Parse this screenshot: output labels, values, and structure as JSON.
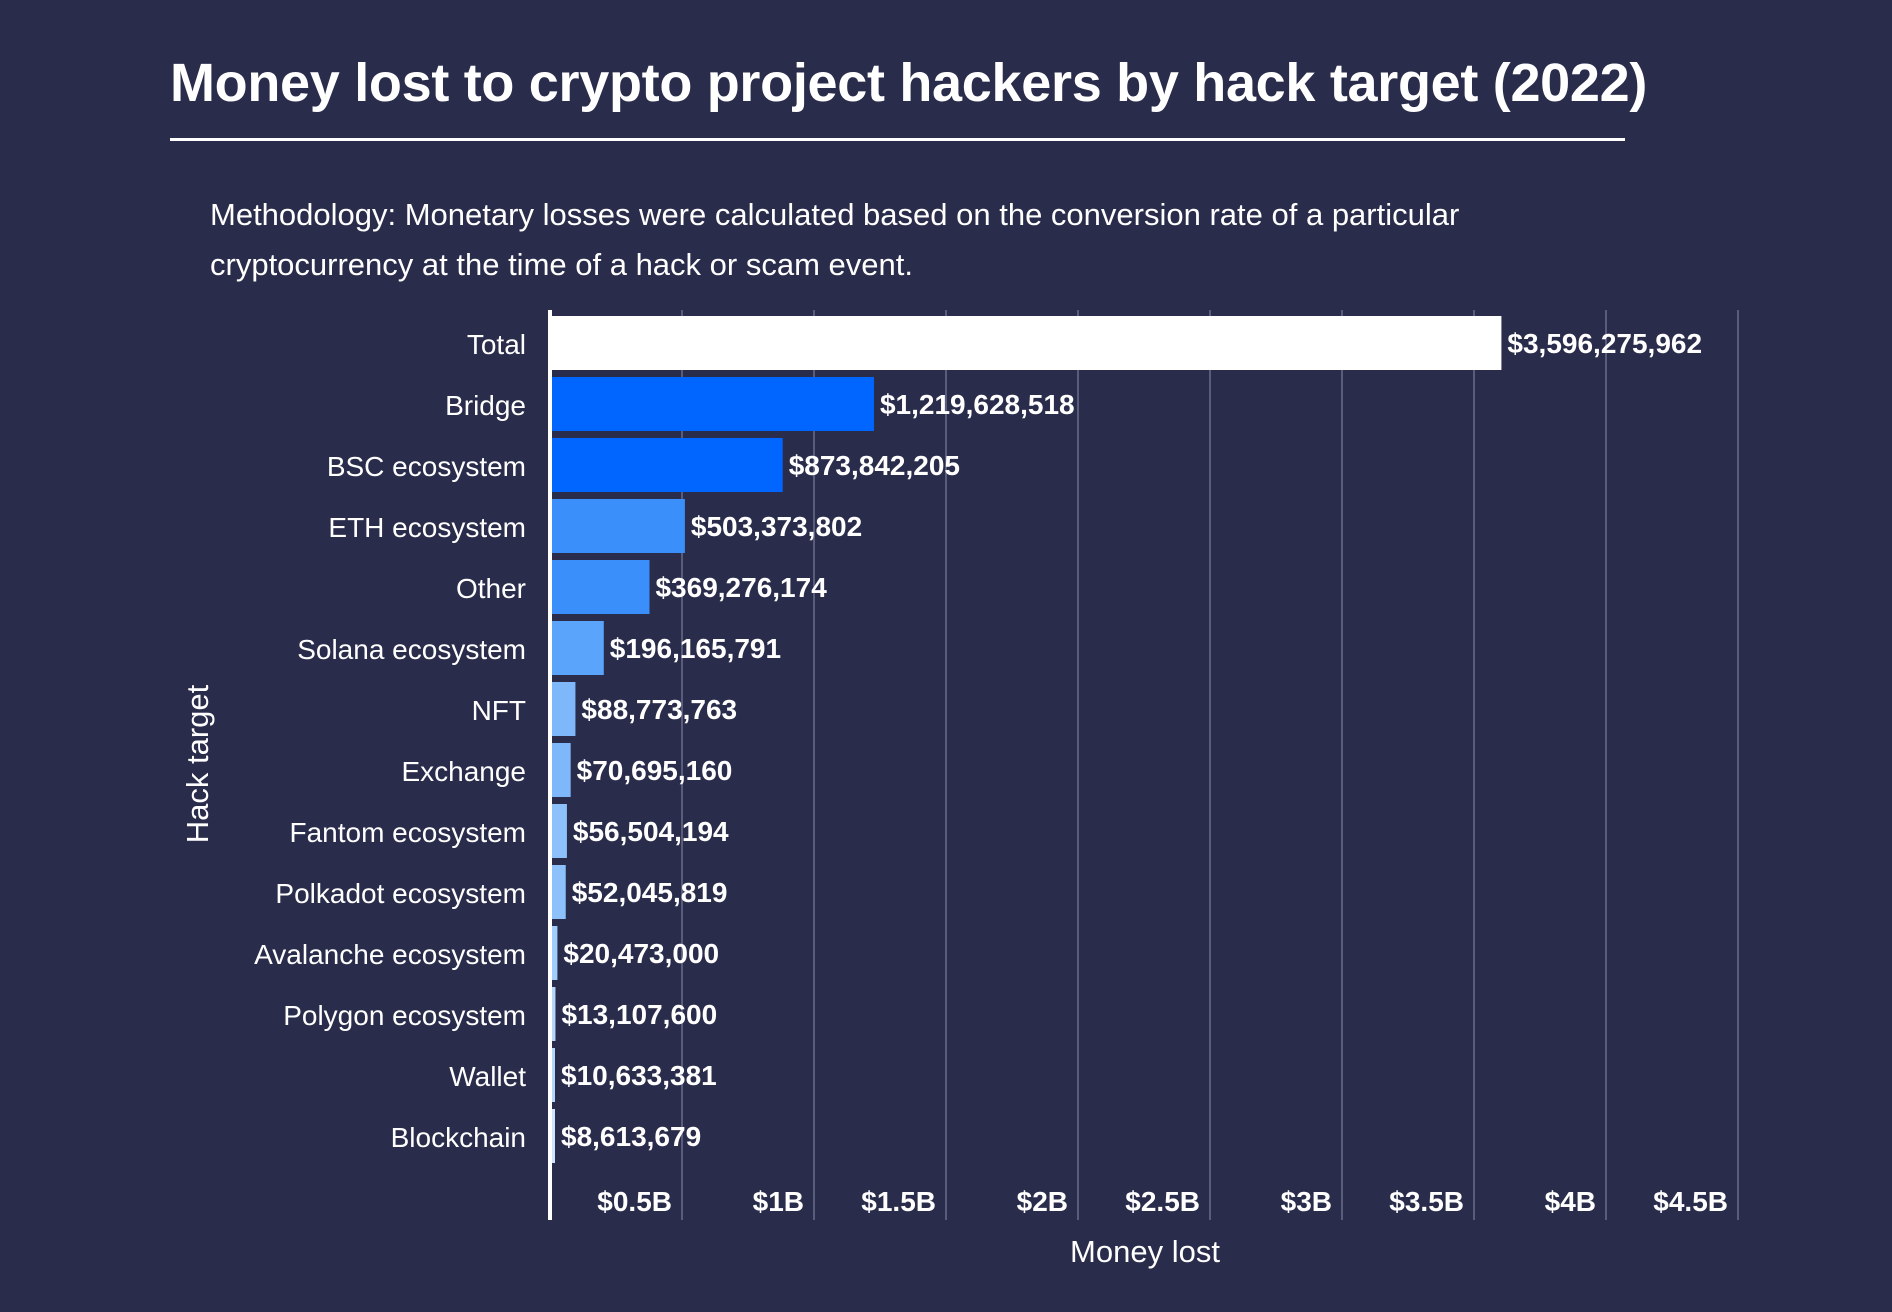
{
  "title": "Money lost to crypto project hackers by hack target (2022)",
  "methodology": "Methodology: Monetary losses were calculated based on the conversion rate of a particular cryptocurrency at the time of a hack or scam event.",
  "colors": {
    "background": "#2a2c4b",
    "text": "#ffffff",
    "gridline": "#6a6d8c",
    "total_bar": "#ffffff",
    "bar_shades": [
      "#0066ff",
      "#3a8ffb",
      "#5aa5fb",
      "#7eb8fb",
      "#8dc1fb",
      "#a1cdfb",
      "#b4d7fb",
      "#cce4fd"
    ]
  },
  "chart_data": {
    "type": "bar",
    "orientation": "horizontal",
    "title": "Money lost to crypto project hackers by hack target (2022)",
    "xlabel": "Money lost",
    "ylabel": "Hack target",
    "xlim": [
      0,
      4500000000
    ],
    "grid": true,
    "categories": [
      "Total",
      "Bridge",
      "BSC ecosystem",
      "ETH ecosystem",
      "Other",
      "Solana ecosystem",
      "NFT",
      "Exchange",
      "Fantom ecosystem",
      "Polkadot ecosystem",
      "Avalanche ecosystem",
      "Polygon ecosystem",
      "Wallet",
      "Blockchain"
    ],
    "values": [
      3596275962,
      1219628518,
      873842205,
      503373802,
      369276174,
      196165791,
      88773763,
      70695160,
      56504194,
      52045819,
      20473000,
      13107600,
      10633381,
      8613679
    ],
    "value_labels": [
      "$3,596,275,962",
      "$1,219,628,518",
      "$873,842,205",
      "$503,373,802",
      "$369,276,174",
      "$196,165,791",
      "$88,773,763",
      "$70,695,160",
      "$56,504,194",
      "$52,045,819",
      "$20,473,000",
      "$13,107,600",
      "$10,633,381",
      "$8,613,679"
    ],
    "x_ticks": [
      500000000,
      1000000000,
      1500000000,
      2000000000,
      2500000000,
      3000000000,
      3500000000,
      4000000000,
      4500000000
    ],
    "x_tick_labels": [
      "$0.5B",
      "$1B",
      "$1.5B",
      "$2B",
      "$2.5B",
      "$3B",
      "$3.5B",
      "$4B",
      "$4.5B"
    ]
  }
}
